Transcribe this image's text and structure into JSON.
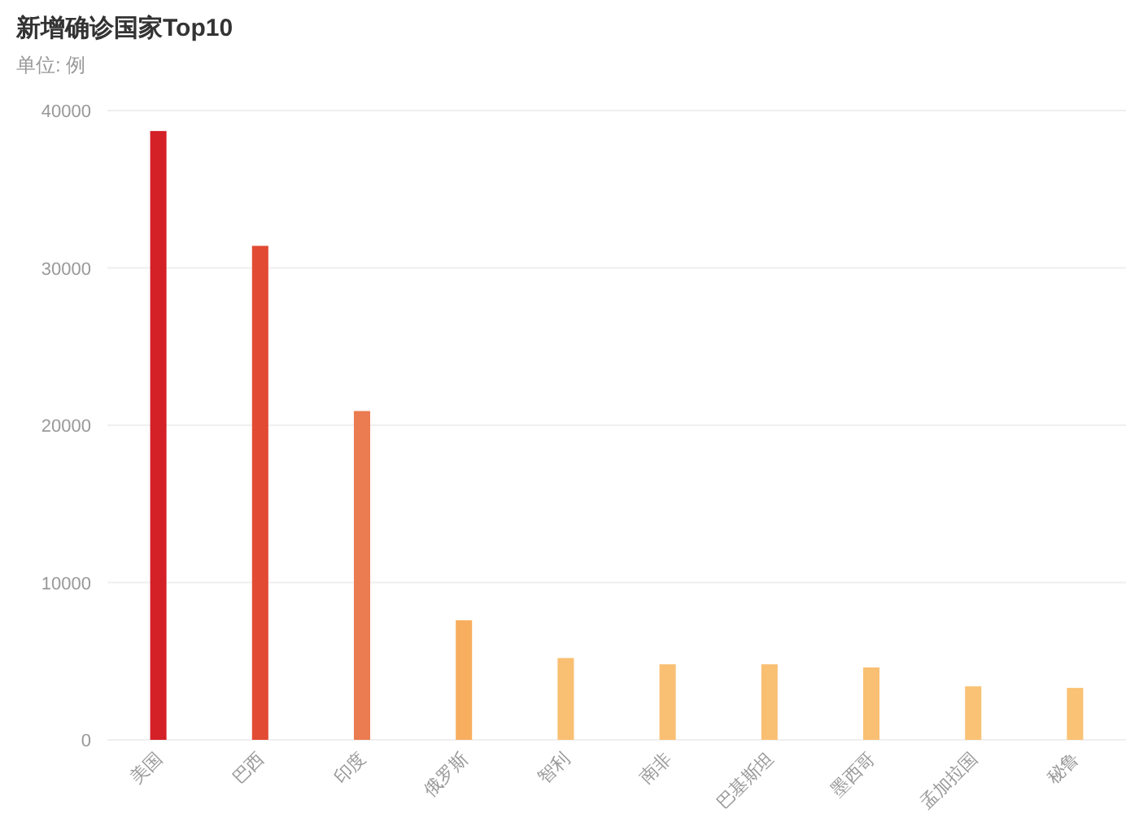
{
  "chart_data": {
    "type": "bar",
    "title": "新增确诊国家Top10",
    "subtitle": "单位: 例",
    "categories": [
      "美国",
      "巴西",
      "印度",
      "俄罗斯",
      "智利",
      "南非",
      "巴基斯坦",
      "墨西哥",
      "孟加拉国",
      "秘鲁"
    ],
    "values": [
      38700,
      31400,
      20900,
      7600,
      5200,
      4800,
      4800,
      4600,
      3400,
      3300
    ],
    "colors": [
      "#d42027",
      "#e24a33",
      "#eb7b50",
      "#f8ae5f",
      "#f9bf72",
      "#f9bf72",
      "#f9bf72",
      "#f9bf72",
      "#f9c274",
      "#f9c274"
    ],
    "ylim": [
      0,
      40000
    ],
    "yticks": [
      0,
      10000,
      20000,
      30000,
      40000
    ],
    "grid": "y"
  }
}
